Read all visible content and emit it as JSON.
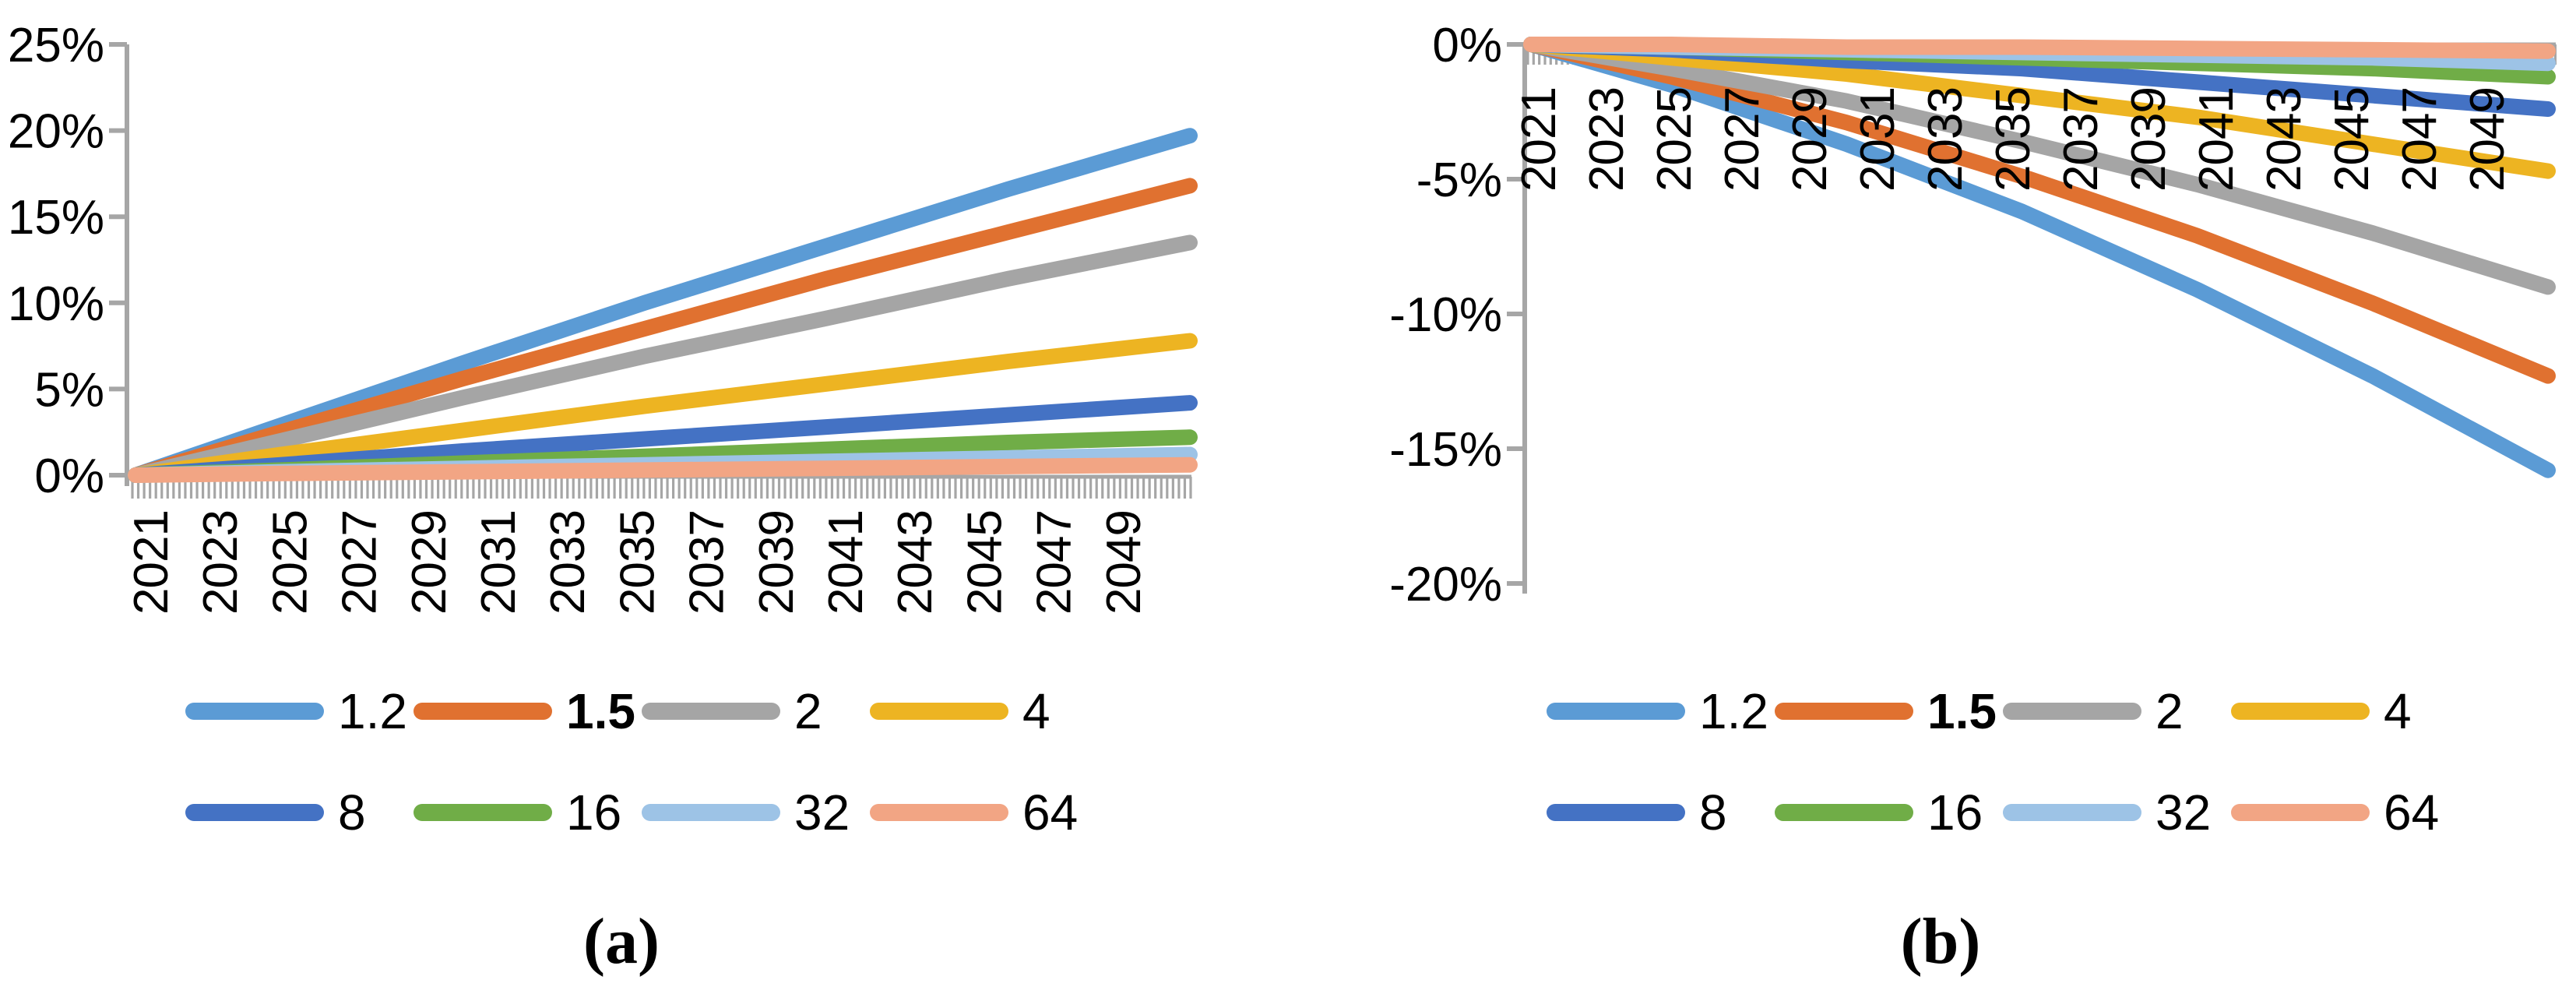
{
  "figure": {
    "captions": {
      "a": "(a)",
      "b": "(b)"
    },
    "background": "#ffffff"
  },
  "colors": {
    "axis": "#A6A6A6",
    "text": "#000000",
    "series_1_2": "#5B9BD5",
    "series_1_5": "#E07130",
    "series_2": "#A5A5A5",
    "series_4": "#EDB422",
    "series_8": "#4472C4",
    "series_16": "#70AD47",
    "series_32": "#9DC3E6",
    "series_64": "#F2A584"
  },
  "legend": {
    "entries": [
      {
        "label": "1.2",
        "color": "#5B9BD5",
        "bold": false
      },
      {
        "label": "1.5",
        "color": "#E07130",
        "bold": true
      },
      {
        "label": "2",
        "color": "#A5A5A5",
        "bold": false
      },
      {
        "label": "4",
        "color": "#EDB422",
        "bold": false
      },
      {
        "label": "8",
        "color": "#4472C4",
        "bold": false
      },
      {
        "label": "16",
        "color": "#70AD47",
        "bold": false
      },
      {
        "label": "32",
        "color": "#9DC3E6",
        "bold": false
      },
      {
        "label": "64",
        "color": "#F2A584",
        "bold": false
      }
    ]
  },
  "chart_data": [
    {
      "id": "a",
      "type": "line",
      "title": "",
      "xlabel": "",
      "ylabel": "",
      "grid": false,
      "legend_position": "bottom",
      "x": [
        2021,
        2025,
        2030,
        2035,
        2040,
        2045,
        2050
      ],
      "x_range": [
        2021,
        2050
      ],
      "x_tick_labels": [
        "2021",
        "2023",
        "2025",
        "2027",
        "2029",
        "2031",
        "2033",
        "2035",
        "2037",
        "2039",
        "2041",
        "2043",
        "2045",
        "2047",
        "2049"
      ],
      "ylim": [
        0,
        25
      ],
      "yticks": [
        25,
        20,
        15,
        10,
        5,
        0
      ],
      "y_tick_labels": [
        "25%",
        "20%",
        "15%",
        "10%",
        "5%",
        "0%"
      ],
      "series": [
        {
          "name": "1.2",
          "color": "#5B9BD5",
          "values": [
            0,
            2.9,
            6.5,
            10.0,
            13.3,
            16.6,
            19.7
          ]
        },
        {
          "name": "1.5",
          "color": "#E07130",
          "values": [
            0,
            2.5,
            5.6,
            8.5,
            11.4,
            14.1,
            16.8
          ]
        },
        {
          "name": "2",
          "color": "#A5A5A5",
          "values": [
            0,
            2.0,
            4.5,
            6.9,
            9.1,
            11.4,
            13.5
          ]
        },
        {
          "name": "4",
          "color": "#EDB422",
          "values": [
            0,
            1.2,
            2.6,
            4.0,
            5.3,
            6.6,
            7.8
          ]
        },
        {
          "name": "8",
          "color": "#4472C4",
          "values": [
            0,
            0.6,
            1.4,
            2.1,
            2.8,
            3.5,
            4.2
          ]
        },
        {
          "name": "16",
          "color": "#70AD47",
          "values": [
            0,
            0.3,
            0.7,
            1.1,
            1.5,
            1.9,
            2.2
          ]
        },
        {
          "name": "32",
          "color": "#9DC3E6",
          "values": [
            0,
            0.2,
            0.4,
            0.6,
            0.8,
            1.0,
            1.2
          ]
        },
        {
          "name": "64",
          "color": "#F2A584",
          "values": [
            0,
            0.1,
            0.2,
            0.3,
            0.4,
            0.5,
            0.6
          ]
        }
      ]
    },
    {
      "id": "b",
      "type": "line",
      "title": "",
      "xlabel": "",
      "ylabel": "",
      "grid": false,
      "legend_position": "bottom",
      "x": [
        2021,
        2025,
        2030,
        2035,
        2040,
        2045,
        2050
      ],
      "x_range": [
        2021,
        2050
      ],
      "x_tick_labels": [
        "2021",
        "2023",
        "2025",
        "2027",
        "2029",
        "2031",
        "2033",
        "2035",
        "2037",
        "2039",
        "2041",
        "2043",
        "2045",
        "2047",
        "2049"
      ],
      "ylim": [
        -20,
        0
      ],
      "yticks": [
        0,
        -5,
        -10,
        -15,
        -20
      ],
      "y_tick_labels": [
        "0%",
        "-5%",
        "-10%",
        "-15%",
        "-20%"
      ],
      "series": [
        {
          "name": "1.2",
          "color": "#5B9BD5",
          "values": [
            0,
            -1.5,
            -3.7,
            -6.2,
            -9.1,
            -12.3,
            -15.8
          ]
        },
        {
          "name": "1.5",
          "color": "#E07130",
          "values": [
            0,
            -1.2,
            -2.9,
            -4.9,
            -7.1,
            -9.6,
            -12.3
          ]
        },
        {
          "name": "2",
          "color": "#A5A5A5",
          "values": [
            0,
            -0.9,
            -2.1,
            -3.6,
            -5.2,
            -7.0,
            -9.0
          ]
        },
        {
          "name": "4",
          "color": "#EDB422",
          "values": [
            0,
            -0.5,
            -1.1,
            -1.9,
            -2.7,
            -3.7,
            -4.7
          ]
        },
        {
          "name": "8",
          "color": "#4472C4",
          "values": [
            0,
            -0.2,
            -0.6,
            -0.9,
            -1.4,
            -1.9,
            -2.4
          ]
        },
        {
          "name": "16",
          "color": "#70AD47",
          "values": [
            0,
            -0.1,
            -0.3,
            -0.5,
            -0.7,
            -0.9,
            -1.2
          ]
        },
        {
          "name": "32",
          "color": "#9DC3E6",
          "values": [
            0,
            -0.1,
            -0.2,
            -0.3,
            -0.4,
            -0.5,
            -0.7
          ]
        },
        {
          "name": "64",
          "color": "#F2A584",
          "values": [
            0,
            0,
            -0.1,
            -0.1,
            -0.15,
            -0.2,
            -0.25
          ]
        }
      ]
    }
  ]
}
